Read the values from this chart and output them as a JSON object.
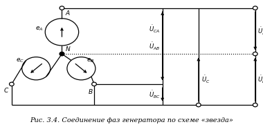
{
  "title": "Рис. 3.4. Соединение фаз генератора по схеме «звезда»",
  "background": "#ffffff",
  "line_color": "#000000"
}
